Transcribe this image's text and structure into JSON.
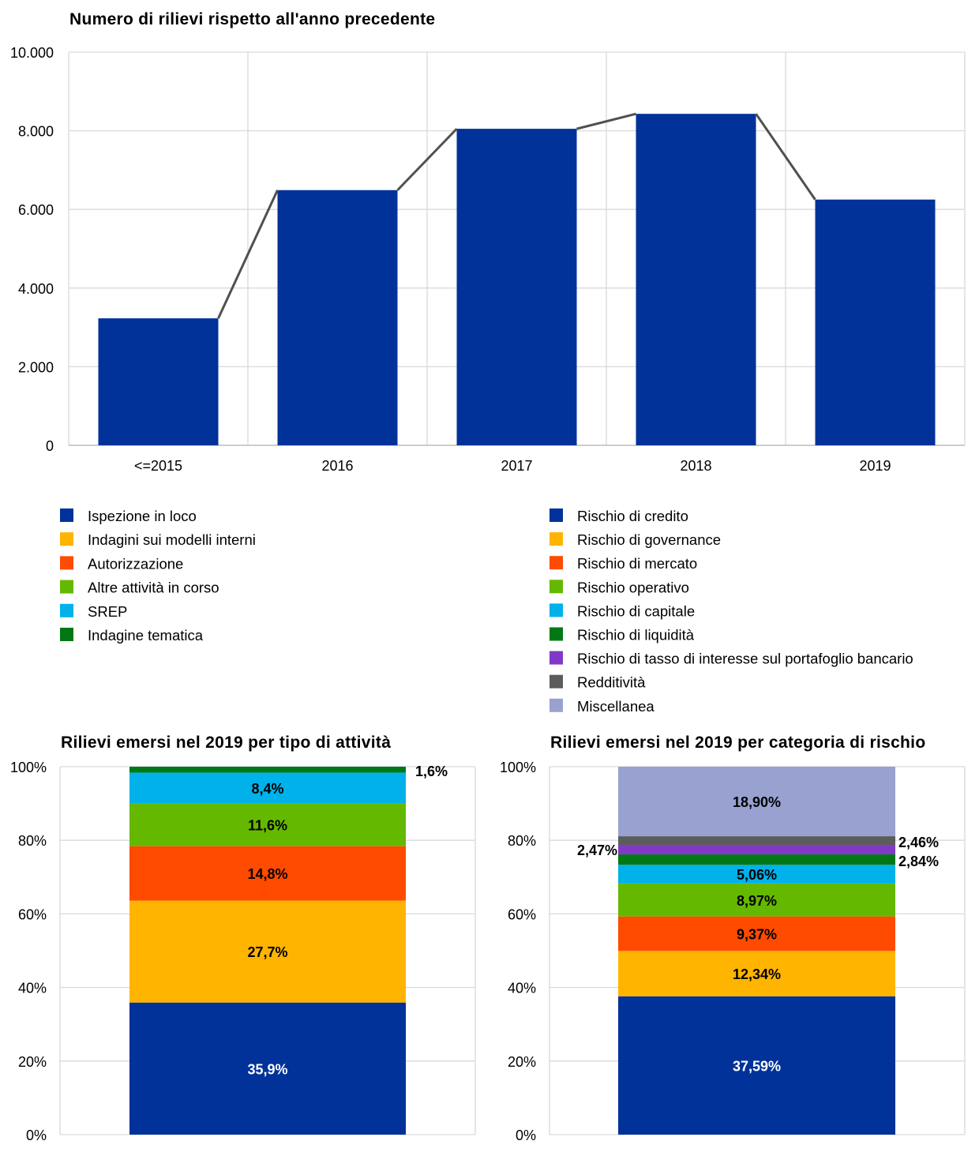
{
  "chart_data": [
    {
      "type": "bar",
      "title": "Numero di rilievi rispetto all'anno precedente",
      "categories": [
        "<=2015",
        "2016",
        "2017",
        "2018",
        "2019"
      ],
      "values": [
        3230,
        6490,
        8050,
        8430,
        6250
      ],
      "ylim": [
        0,
        10000
      ],
      "yticks": [
        "0",
        "2.000",
        "4.000",
        "6.000",
        "8.000",
        "10.000"
      ],
      "grid": true,
      "bar_color": "#003299",
      "line_color": "#505050"
    },
    {
      "type": "bar",
      "stacked": true,
      "title": "Rilievi emersi nel 2019 per tipo di attività",
      "ylim": [
        0,
        100
      ],
      "yticks": [
        "0%",
        "20%",
        "40%",
        "60%",
        "80%",
        "100%"
      ],
      "series": [
        {
          "name": "Ispezione in loco",
          "value": 35.9,
          "label": "35,9%",
          "color": "#003299"
        },
        {
          "name": "Indagini sui modelli interni",
          "value": 27.7,
          "label": "27,7%",
          "color": "#FFB400"
        },
        {
          "name": "Autorizzazione",
          "value": 14.8,
          "label": "14,8%",
          "color": "#FF4B00"
        },
        {
          "name": "Altre attività in corso",
          "value": 11.6,
          "label": "11,6%",
          "color": "#65B800"
        },
        {
          "name": "SREP",
          "value": 8.4,
          "label": "8,4%",
          "color": "#00B1EA"
        },
        {
          "name": "Indagine tematica",
          "value": 1.6,
          "label": "1,6%",
          "color": "#007816"
        }
      ]
    },
    {
      "type": "bar",
      "stacked": true,
      "title": "Rilievi emersi nel 2019 per categoria di rischio",
      "ylim": [
        0,
        100
      ],
      "yticks": [
        "0%",
        "20%",
        "40%",
        "60%",
        "80%",
        "100%"
      ],
      "series": [
        {
          "name": "Rischio di credito",
          "value": 37.59,
          "label": "37,59%",
          "color": "#003299"
        },
        {
          "name": "Rischio di governance",
          "value": 12.34,
          "label": "12,34%",
          "color": "#FFB400"
        },
        {
          "name": "Rischio di mercato",
          "value": 9.37,
          "label": "9,37%",
          "color": "#FF4B00"
        },
        {
          "name": "Rischio operativo",
          "value": 8.97,
          "label": "8,97%",
          "color": "#65B800"
        },
        {
          "name": "Rischio di capitale",
          "value": 5.06,
          "label": "5,06%",
          "color": "#00B1EA"
        },
        {
          "name": "Rischio di liquidità",
          "value": 2.84,
          "label": "2,84%",
          "color": "#007816"
        },
        {
          "name": "Rischio di tasso di interesse sul portafoglio bancario",
          "value": 2.47,
          "label": "2,47%",
          "color": "#8139C6"
        },
        {
          "name": "Redditività",
          "value": 2.46,
          "label": "2,46%",
          "color": "#5C5C5C"
        },
        {
          "name": "Miscellanea",
          "value": 18.9,
          "label": "18,90%",
          "color": "#98A1D0"
        }
      ]
    }
  ]
}
